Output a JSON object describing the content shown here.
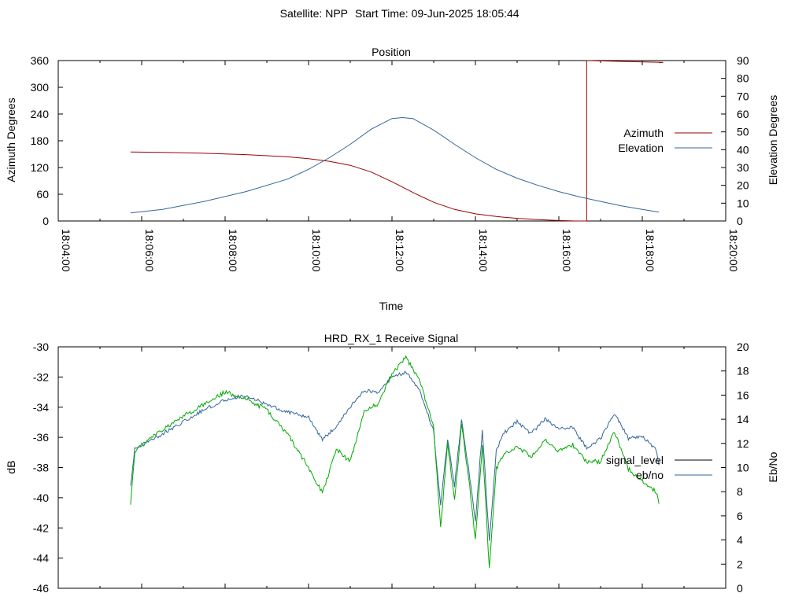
{
  "header": {
    "satellite": "Satellite: NPP",
    "start_time": "Start Time: 09-Jun-2025 18:05:44"
  },
  "chart_data": [
    {
      "type": "line",
      "title": "Position",
      "xlabel": "Time",
      "ylabel": "Azimuth Degrees",
      "y2label": "Elevation Degrees",
      "xlim": [
        "18:04:00",
        "18:20:00"
      ],
      "ylim": [
        0,
        360
      ],
      "y2lim": [
        0,
        90
      ],
      "x_ticks": [
        "18:04:00",
        "18:06:00",
        "18:08:00",
        "18:10:00",
        "18:12:00",
        "18:14:00",
        "18:16:00",
        "18:18:00",
        "18:20:00"
      ],
      "y_ticks": [
        "0",
        "60",
        "120",
        "180",
        "240",
        "300",
        "360"
      ],
      "y2_ticks": [
        "0",
        "10",
        "20",
        "30",
        "40",
        "50",
        "60",
        "70",
        "80",
        "90"
      ],
      "grid": false,
      "legend": "right",
      "series": [
        {
          "name": "Azimuth",
          "axis": "y",
          "color": "#990000",
          "x": [
            "18:05:44",
            "18:06:30",
            "18:07:30",
            "18:08:30",
            "18:09:30",
            "18:10:00",
            "18:10:30",
            "18:11:00",
            "18:11:30",
            "18:12:00",
            "18:12:30",
            "18:13:00",
            "18:13:30",
            "18:14:00",
            "18:14:30",
            "18:15:00",
            "18:15:30",
            "18:16:00",
            "18:16:24",
            "18:16:24",
            "18:16:40",
            "18:16:40",
            "18:17:30",
            "18:18:30",
            "18:18:24"
          ],
          "y": [
            155,
            154,
            152,
            149,
            144,
            140,
            134,
            125,
            110,
            88,
            64,
            42,
            26,
            16,
            10,
            6,
            3,
            1,
            0,
            0,
            0,
            360,
            358,
            356,
            355
          ]
        },
        {
          "name": "Elevation",
          "axis": "y2",
          "color": "#336699",
          "x": [
            "18:05:44",
            "18:06:30",
            "18:07:30",
            "18:08:30",
            "18:09:30",
            "18:10:00",
            "18:10:30",
            "18:11:00",
            "18:11:30",
            "18:12:00",
            "18:12:15",
            "18:12:30",
            "18:13:00",
            "18:13:30",
            "18:14:00",
            "18:14:30",
            "18:15:00",
            "18:15:30",
            "18:16:00",
            "18:16:30",
            "18:17:00",
            "18:17:30",
            "18:18:00",
            "18:18:24"
          ],
          "y": [
            4.5,
            6.5,
            11,
            16.5,
            23.5,
            29,
            35.5,
            43,
            51.5,
            57.5,
            58,
            57.5,
            51,
            43,
            35.5,
            29,
            24,
            20,
            16.5,
            13.5,
            11,
            8.5,
            6.5,
            5
          ]
        }
      ]
    },
    {
      "type": "line",
      "title": "HRD_RX_1 Receive Signal",
      "ylabel": "dB",
      "y2label": "Eb/No",
      "xlim": [
        "18:04:00",
        "18:20:00"
      ],
      "ylim": [
        -46,
        -30
      ],
      "y2lim": [
        0,
        20
      ],
      "y_ticks": [
        "-30",
        "-32",
        "-34",
        "-36",
        "-38",
        "-40",
        "-42",
        "-44",
        "-46"
      ],
      "y2_ticks": [
        "0",
        "2",
        "4",
        "6",
        "8",
        "10",
        "12",
        "14",
        "16",
        "18",
        "20"
      ],
      "grid": false,
      "legend": "right",
      "series": [
        {
          "name": "signal_level",
          "axis": "y",
          "color": "#000000",
          "x": [],
          "y": []
        },
        {
          "name": "eb/no",
          "axis": "y2",
          "color": "#336699",
          "x": [
            "18:05:44",
            "18:05:50",
            "18:06:00",
            "18:06:30",
            "18:07:00",
            "18:07:30",
            "18:08:00",
            "18:08:30",
            "18:09:00",
            "18:09:30",
            "18:10:00",
            "18:10:20",
            "18:10:40",
            "18:11:00",
            "18:11:20",
            "18:11:40",
            "18:12:00",
            "18:12:20",
            "18:12:40",
            "18:13:00",
            "18:13:10",
            "18:13:20",
            "18:13:30",
            "18:13:40",
            "18:13:50",
            "18:14:00",
            "18:14:10",
            "18:14:20",
            "18:14:30",
            "18:14:40",
            "18:15:00",
            "18:15:20",
            "18:15:40",
            "18:16:00",
            "18:16:20",
            "18:16:40",
            "18:17:00",
            "18:17:20",
            "18:17:40",
            "18:18:00",
            "18:18:20",
            "18:18:24"
          ],
          "y": [
            8.5,
            11.5,
            11.8,
            12.8,
            13.8,
            14.8,
            15.6,
            16,
            15.2,
            14.6,
            14.2,
            12.3,
            13.4,
            15,
            16.4,
            16.2,
            17.5,
            17.9,
            16.4,
            13,
            6.8,
            12.4,
            8.5,
            14,
            10,
            5.5,
            13.2,
            3.8,
            11.4,
            12.8,
            13.8,
            12.8,
            14,
            13.2,
            13.3,
            11.6,
            12.4,
            14.5,
            12.4,
            12.6,
            11.5,
            10.2
          ]
        },
        {
          "name": "",
          "axis": "y",
          "color": "#00aa00",
          "x": [
            "18:05:44",
            "18:05:50",
            "18:06:00",
            "18:06:30",
            "18:07:00",
            "18:07:30",
            "18:08:00",
            "18:08:30",
            "18:09:00",
            "18:09:30",
            "18:10:00",
            "18:10:20",
            "18:10:40",
            "18:11:00",
            "18:11:20",
            "18:11:40",
            "18:12:00",
            "18:12:20",
            "18:12:40",
            "18:13:00",
            "18:13:10",
            "18:13:20",
            "18:13:30",
            "18:13:40",
            "18:13:50",
            "18:14:00",
            "18:14:10",
            "18:14:20",
            "18:14:30",
            "18:14:40",
            "18:15:00",
            "18:15:20",
            "18:15:40",
            "18:16:00",
            "18:16:20",
            "18:16:40",
            "18:17:00",
            "18:17:20",
            "18:17:40",
            "18:18:00",
            "18:18:20",
            "18:18:24"
          ],
          "y": [
            -40.5,
            -37,
            -36.5,
            -35.5,
            -34.6,
            -33.8,
            -33,
            -33.4,
            -34.2,
            -35.8,
            -38,
            -39.7,
            -36.8,
            -37.6,
            -34.2,
            -33.8,
            -31.8,
            -30.7,
            -32.3,
            -35.3,
            -42,
            -36.4,
            -40.2,
            -35.2,
            -38.5,
            -42.8,
            -36.5,
            -44.7,
            -38.1,
            -37.1,
            -36.6,
            -37.3,
            -36.2,
            -36.9,
            -36.5,
            -37.6,
            -37.6,
            -35.6,
            -38.1,
            -38.9,
            -39.6,
            -40.4
          ]
        }
      ]
    }
  ]
}
